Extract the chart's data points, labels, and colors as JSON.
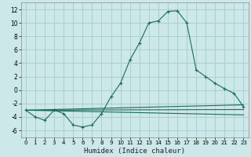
{
  "xlabel": "Humidex (Indice chaleur)",
  "bg_color": "#cce8e8",
  "grid_color": "#aacfcf",
  "line_color": "#1a6b5a",
  "xlim": [
    -0.5,
    23.5
  ],
  "ylim": [
    -7,
    13
  ],
  "xticks": [
    0,
    1,
    2,
    3,
    4,
    5,
    6,
    7,
    8,
    9,
    10,
    11,
    12,
    13,
    14,
    15,
    16,
    17,
    18,
    19,
    20,
    21,
    22,
    23
  ],
  "yticks": [
    -6,
    -4,
    -2,
    0,
    2,
    4,
    6,
    8,
    10,
    12
  ],
  "main_x": [
    0,
    1,
    2,
    3,
    4,
    5,
    6,
    7,
    8,
    9,
    10,
    11,
    12,
    13,
    14,
    15,
    16,
    17,
    18,
    19,
    20,
    21,
    22,
    23
  ],
  "main_y": [
    -3,
    -4,
    -4.5,
    -3,
    -3.5,
    -5.2,
    -5.5,
    -5.2,
    -3.5,
    -1,
    1,
    4.5,
    7,
    10,
    10.3,
    11.7,
    11.8,
    10,
    3,
    2,
    1,
    0.2,
    -0.5,
    -2.5
  ],
  "flat_lines": [
    {
      "x0": 0,
      "y0": -3,
      "x1": 23,
      "y1": -2.2
    },
    {
      "x0": 0,
      "y0": -3,
      "x1": 23,
      "y1": -2.9
    },
    {
      "x0": 0,
      "y0": -3,
      "x1": 23,
      "y1": -3.7
    }
  ]
}
